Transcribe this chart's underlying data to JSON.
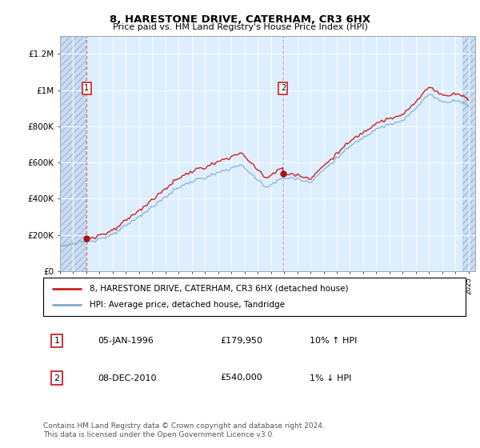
{
  "title": "8, HARESTONE DRIVE, CATERHAM, CR3 6HX",
  "subtitle": "Price paid vs. HM Land Registry's House Price Index (HPI)",
  "ylim": [
    0,
    1300000
  ],
  "yticks": [
    0,
    200000,
    400000,
    600000,
    800000,
    1000000,
    1200000
  ],
  "ytick_labels": [
    "£0",
    "£200K",
    "£400K",
    "£600K",
    "£800K",
    "£1M",
    "£1.2M"
  ],
  "sale1_year": 1996.03,
  "sale1_price": 179950,
  "sale2_year": 2010.93,
  "sale2_price": 540000,
  "hpi_color": "#7eaacc",
  "price_color": "#cc2222",
  "marker_color": "#aa1111",
  "legend_label1": "8, HARESTONE DRIVE, CATERHAM, CR3 6HX (detached house)",
  "legend_label2": "HPI: Average price, detached house, Tandridge",
  "table_row1": [
    "1",
    "05-JAN-1996",
    "£179,950",
    "10% ↑ HPI"
  ],
  "table_row2": [
    "2",
    "08-DEC-2010",
    "£540,000",
    "1% ↓ HPI"
  ],
  "footer": "Contains HM Land Registry data © Crown copyright and database right 2024.\nThis data is licensed under the Open Government Licence v3.0.",
  "bg_center": "#ddeeff",
  "bg_hatch": "#c8ddf0",
  "vline_color": "#dd6666",
  "vline2_color": "#aaaacc",
  "grid_color": "#cccccc"
}
